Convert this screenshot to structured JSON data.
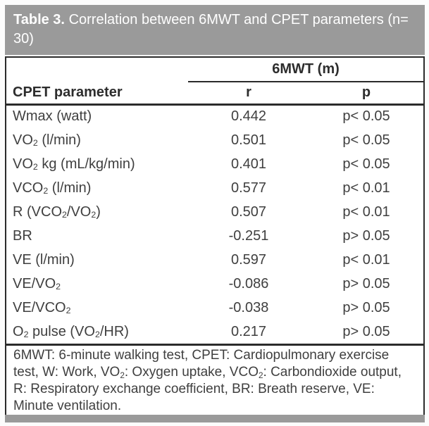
{
  "title": {
    "label": "Table 3.",
    "caption": "Correlation between 6MWT and CPET parameters (n= 30)"
  },
  "table": {
    "group_header": "6MWT (m)",
    "columns": [
      "CPET parameter",
      "r",
      "p"
    ],
    "rows": [
      {
        "parameter": "Wmax (watt)",
        "r": "0.442",
        "p": "p< 0.05"
      },
      {
        "parameter": "VO₂ (l/min)",
        "r": "0.501",
        "p": "p< 0.05"
      },
      {
        "parameter": "VO₂ kg (mL/kg/min)",
        "r": "0.401",
        "p": "p< 0.05"
      },
      {
        "parameter": "VCO₂ (l/min)",
        "r": "0.577",
        "p": "p< 0.01"
      },
      {
        "parameter": "R (VCO₂/VO₂)",
        "r": "0.507",
        "p": "p< 0.01"
      },
      {
        "parameter": "BR",
        "r": "-0.251",
        "p": "p> 0.05"
      },
      {
        "parameter": "VE (l/min)",
        "r": "0.597",
        "p": "p< 0.01"
      },
      {
        "parameter": "VE/VO₂",
        "r": "-0.086",
        "p": "p> 0.05"
      },
      {
        "parameter": "VE/VCO₂",
        "r": "-0.038",
        "p": "p> 0.05"
      },
      {
        "parameter": "O₂ pulse (VO₂/HR)",
        "r": "0.217",
        "p": "p> 0.05"
      }
    ]
  },
  "footnote": "6MWT: 6-minute walking test, CPET: Cardiopulmonary exercise test, W: Work, VO₂: Oxygen uptake, VCO₂: Carbondioxide output, R: Respiratory exchange coefficient, BR: Breath reserve, VE: Minute ventilation.",
  "colors": {
    "header_bar": "#9a9a9a",
    "border": "#2b2b2b",
    "text": "#3f3f3f",
    "title_text": "#ffffff"
  }
}
